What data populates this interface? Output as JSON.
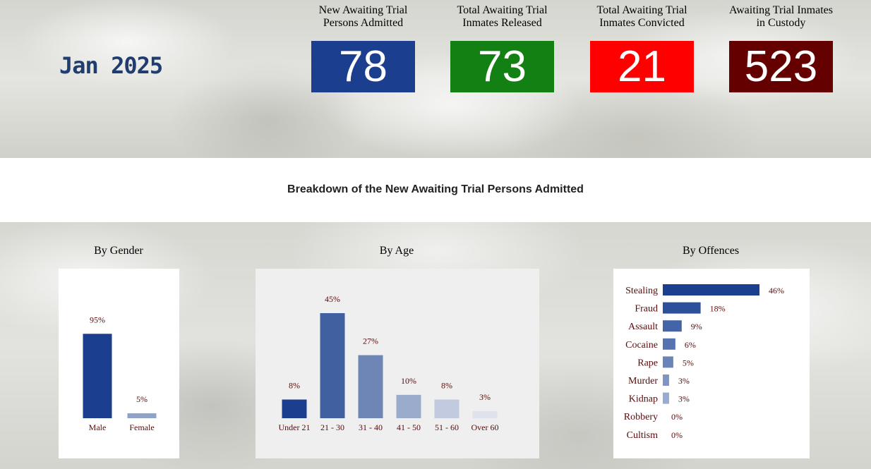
{
  "header": {
    "month": "Jan 2025"
  },
  "kpis": [
    {
      "label_1": "New Awaiting Trial",
      "label_2": "Persons Admitted",
      "value": "78",
      "color": "#1b3e8f"
    },
    {
      "label_1": "Total Awaiting Trial",
      "label_2": "Inmates Released",
      "value": "73",
      "color": "#128012"
    },
    {
      "label_1": "Total Awaiting Trial",
      "label_2": "Inmates Convicted",
      "value": "21",
      "color": "#ff0000"
    },
    {
      "label_1": "Awaiting Trial Inmates",
      "label_2": "in Custody",
      "value": "523",
      "color": "#650000"
    }
  ],
  "section": {
    "title": "Breakdown of the New Awaiting Trial Persons Admitted"
  },
  "chart_data": [
    {
      "type": "bar",
      "title": "By Gender",
      "categories": [
        "Male",
        "Female"
      ],
      "values": [
        95,
        5
      ],
      "value_labels": [
        "95%",
        "5%"
      ],
      "colors": [
        "#1b3e8f",
        "#8fa3c8"
      ],
      "ylim": [
        0,
        100
      ]
    },
    {
      "type": "bar",
      "title": "By Age",
      "categories": [
        "Under 21",
        "21 - 30",
        "31 - 40",
        "41 - 50",
        "51 - 60",
        "Over 60"
      ],
      "values": [
        8,
        45,
        27,
        10,
        8,
        3
      ],
      "value_labels": [
        "8%",
        "45%",
        "27%",
        "10%",
        "8%",
        "3%"
      ],
      "colors": [
        "#1b3e8f",
        "#4160a0",
        "#6e86b6",
        "#9aabcb",
        "#c1cadf",
        "#dde2ec"
      ],
      "ylim": [
        0,
        45
      ]
    },
    {
      "type": "bar",
      "orientation": "horizontal",
      "title": "By Offences",
      "categories": [
        "Stealing",
        "Fraud",
        "Assault",
        "Cocaine",
        "Rape",
        "Murder",
        "Kidnap",
        "Robbery",
        "Cultism"
      ],
      "values": [
        46,
        18,
        9,
        6,
        5,
        3,
        3,
        0,
        0
      ],
      "value_labels": [
        "46%",
        "18%",
        "9%",
        "6%",
        "5%",
        "3%",
        "3%",
        "0%",
        "0%"
      ],
      "colors": [
        "#1b3e8f",
        "#2d509b",
        "#4464a8",
        "#5673b0",
        "#6a84ba",
        "#7e95c4",
        "#98abd0",
        "#b0bfdb",
        "#c8d2e6"
      ],
      "xlim": [
        0,
        46
      ]
    }
  ]
}
